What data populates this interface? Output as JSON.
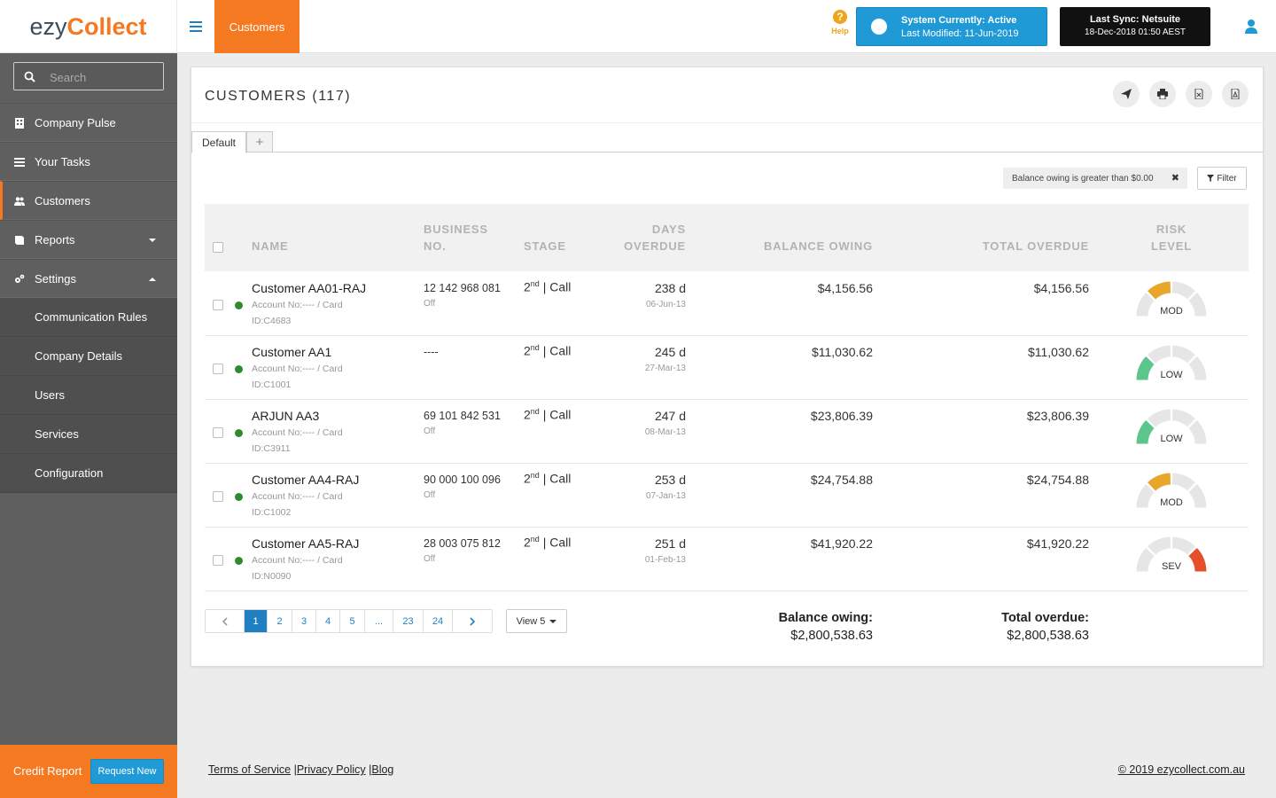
{
  "brand": {
    "logo_left": "ezy",
    "logo_right": "Collect",
    "accent": "#f47920",
    "blue": "#1f9ad6"
  },
  "topbar": {
    "current_tab": "Customers",
    "help_label": "Help",
    "system_status_line1": "System Currently: Active",
    "system_status_line2": "Last Modified: 11-Jun-2019",
    "sync_line1": "Last Sync: Netsuite",
    "sync_line2": "18-Dec-2018 01:50 AEST",
    "icons": [
      "menu-icon",
      "help-icon",
      "user-icon"
    ]
  },
  "sidebar": {
    "search_placeholder": "Search",
    "items": [
      {
        "label": "Company Pulse",
        "icon": "building-icon"
      },
      {
        "label": "Your Tasks",
        "icon": "list-icon"
      },
      {
        "label": "Customers",
        "icon": "users-icon",
        "active": true
      },
      {
        "label": "Reports",
        "icon": "book-icon"
      },
      {
        "label": "Settings",
        "icon": "gears-icon"
      }
    ],
    "settings_sub": [
      "Communication Rules",
      "Company Details",
      "Users",
      "Services",
      "Configuration"
    ],
    "credit_label": "Credit Report",
    "request_button": "Request New"
  },
  "panel": {
    "title": "CUSTOMERS (117)",
    "tools": [
      "send-icon",
      "print-icon",
      "excel-icon",
      "pdf-icon"
    ],
    "tab_default": "Default",
    "tab_add": "+",
    "filter_chip": "Balance owing is greater than $0.00",
    "filter_chip_close": "✖",
    "filter_button": "Filter"
  },
  "table": {
    "headers": {
      "name": "NAME",
      "business_1": "BUSINESS",
      "business_2": "NO.",
      "stage": "STAGE",
      "days_1": "DAYS",
      "days_2": "OVERDUE",
      "balance": "BALANCE OWING",
      "total": "TOTAL OVERDUE",
      "risk_1": "RISK",
      "risk_2": "LEVEL"
    },
    "rows": [
      {
        "name": "Customer AA01-RAJ",
        "account": "Account No:---- / Card",
        "id": "ID:C4683",
        "business_no": "12 142 968 081",
        "business_sub": "Off",
        "stage_num": "2",
        "stage_sup": "nd",
        "stage_action": " | Call",
        "days": "238 d",
        "date": "06-Jun-13",
        "balance": "$4,156.56",
        "total": "$4,156.56",
        "risk": "MOD",
        "risk_level": 2
      },
      {
        "name": "Customer AA1",
        "account": "Account No:---- / Card",
        "id": "ID:C1001",
        "business_no": "----",
        "business_sub": "",
        "stage_num": "2",
        "stage_sup": "nd",
        "stage_action": " | Call",
        "days": "245 d",
        "date": "27-Mar-13",
        "balance": "$11,030.62",
        "total": "$11,030.62",
        "risk": "LOW",
        "risk_level": 1
      },
      {
        "name": "ARJUN AA3",
        "account": "Account No:---- / Card",
        "id": "ID:C3911",
        "business_no": "69 101 842 531",
        "business_sub": "Off",
        "stage_num": "2",
        "stage_sup": "nd",
        "stage_action": " | Call",
        "days": "247 d",
        "date": "08-Mar-13",
        "balance": "$23,806.39",
        "total": "$23,806.39",
        "risk": "LOW",
        "risk_level": 1
      },
      {
        "name": "Customer AA4-RAJ",
        "account": "Account No:---- / Card",
        "id": "ID:C1002",
        "business_no": "90 000 100 096",
        "business_sub": "Off",
        "stage_num": "2",
        "stage_sup": "nd",
        "stage_action": " | Call",
        "days": "253 d",
        "date": "07-Jan-13",
        "balance": "$24,754.88",
        "total": "$24,754.88",
        "risk": "MOD",
        "risk_level": 2
      },
      {
        "name": "Customer AA5-RAJ",
        "account": "Account No:---- / Card",
        "id": "ID:N0090",
        "business_no": "28 003 075 812",
        "business_sub": "Off",
        "stage_num": "2",
        "stage_sup": "nd",
        "stage_action": " | Call",
        "days": "251 d",
        "date": "01-Feb-13",
        "balance": "$41,920.22",
        "total": "$41,920.22",
        "risk": "SEV",
        "risk_level": 4
      }
    ],
    "risk_colors": {
      "LOW": "#5bc58b",
      "MOD": "#e8a62a",
      "SEV": "#e4502b"
    }
  },
  "pagination": {
    "pages": [
      "1",
      "2",
      "3",
      "4",
      "5",
      "...",
      "23",
      "24"
    ],
    "current": "1",
    "view_label": "View 5"
  },
  "summary": {
    "balance_label": "Balance owing:",
    "balance_value": "$2,800,538.63",
    "total_label": "Total overdue:",
    "total_value": "$2,800,538.63"
  },
  "footer": {
    "terms": "Terms of Service",
    "privacy": "Privacy Policy",
    "blog": "Blog",
    "sep": "|",
    "copyright": "© 2019 ezycollect.com.au"
  }
}
